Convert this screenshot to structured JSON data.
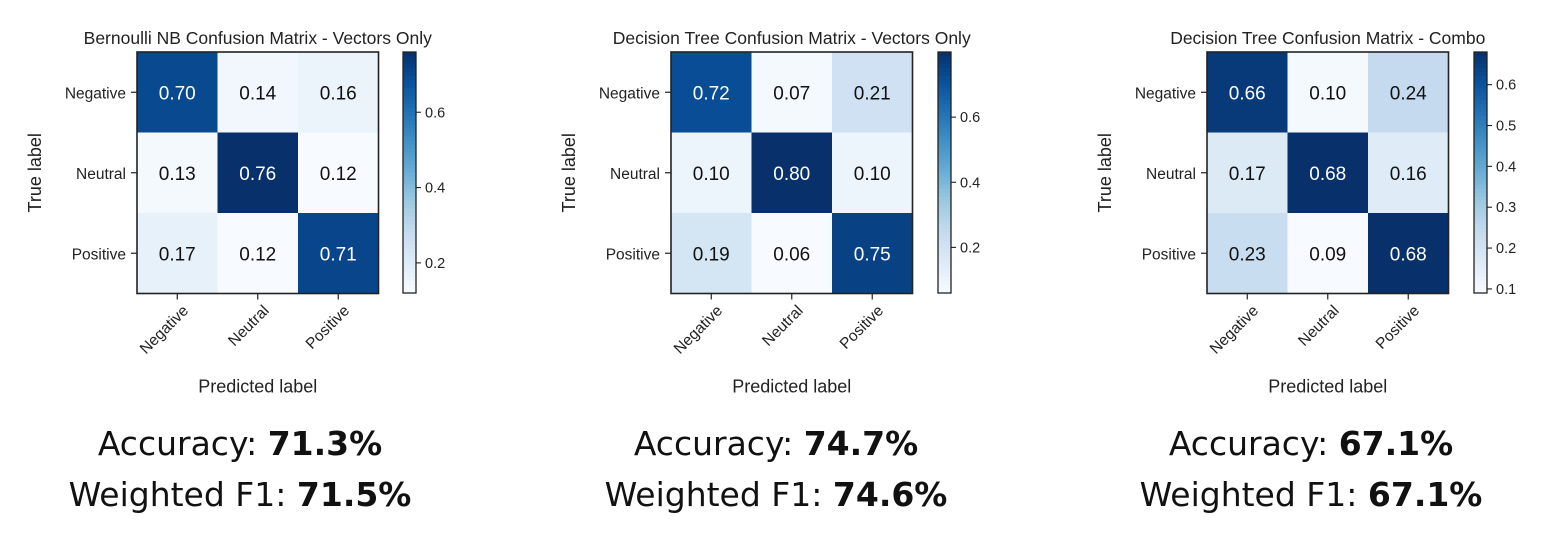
{
  "chart_data": [
    {
      "type": "heatmap",
      "title": "Bernoulli NB Confusion Matrix - Vectors Only",
      "xlabel": "Predicted label",
      "ylabel": "True label",
      "x_categories": [
        "Negative",
        "Neutral",
        "Positive"
      ],
      "y_categories": [
        "Negative",
        "Neutral",
        "Positive"
      ],
      "values": [
        [
          0.7,
          0.14,
          0.16
        ],
        [
          0.13,
          0.76,
          0.12
        ],
        [
          0.17,
          0.12,
          0.71
        ]
      ],
      "cell_labels": [
        [
          "0.70",
          "0.14",
          "0.16"
        ],
        [
          "0.13",
          "0.76",
          "0.12"
        ],
        [
          "0.17",
          "0.12",
          "0.71"
        ]
      ],
      "colorscale": "Blues",
      "color_range": [
        0.12,
        0.76
      ],
      "colorbar_ticks": [
        0.2,
        0.4,
        0.6
      ],
      "colorbar_tick_labels": [
        "0.2",
        "0.4",
        "0.6"
      ]
    },
    {
      "type": "heatmap",
      "title": "Decision Tree Confusion Matrix - Vectors Only",
      "xlabel": "Predicted label",
      "ylabel": "True label",
      "x_categories": [
        "Negative",
        "Neutral",
        "Positive"
      ],
      "y_categories": [
        "Negative",
        "Neutral",
        "Positive"
      ],
      "values": [
        [
          0.72,
          0.07,
          0.21
        ],
        [
          0.1,
          0.8,
          0.1
        ],
        [
          0.19,
          0.06,
          0.75
        ]
      ],
      "cell_labels": [
        [
          "0.72",
          "0.07",
          "0.21"
        ],
        [
          "0.10",
          "0.80",
          "0.10"
        ],
        [
          "0.19",
          "0.06",
          "0.75"
        ]
      ],
      "colorscale": "Blues",
      "color_range": [
        0.06,
        0.8
      ],
      "colorbar_ticks": [
        0.2,
        0.4,
        0.6
      ],
      "colorbar_tick_labels": [
        "0.2",
        "0.4",
        "0.6"
      ]
    },
    {
      "type": "heatmap",
      "title": "Decision Tree Confusion Matrix - Combo",
      "xlabel": "Predicted label",
      "ylabel": "True label",
      "x_categories": [
        "Negative",
        "Neutral",
        "Positive"
      ],
      "y_categories": [
        "Negative",
        "Neutral",
        "Positive"
      ],
      "values": [
        [
          0.66,
          0.1,
          0.24
        ],
        [
          0.17,
          0.68,
          0.16
        ],
        [
          0.23,
          0.09,
          0.68
        ]
      ],
      "cell_labels": [
        [
          "0.66",
          "0.10",
          "0.24"
        ],
        [
          "0.17",
          "0.68",
          "0.16"
        ],
        [
          "0.23",
          "0.09",
          "0.68"
        ]
      ],
      "colorscale": "Blues",
      "color_range": [
        0.09,
        0.68
      ],
      "colorbar_ticks": [
        0.1,
        0.2,
        0.3,
        0.4,
        0.5,
        0.6
      ],
      "colorbar_tick_labels": [
        "0.1",
        "0.2",
        "0.3",
        "0.4",
        "0.5",
        "0.6"
      ]
    }
  ],
  "metrics": [
    {
      "accuracy_label": "Accuracy: ",
      "accuracy_value": "71.3%",
      "f1_label": "Weighted F1: ",
      "f1_value": "71.5%"
    },
    {
      "accuracy_label": "Accuracy: ",
      "accuracy_value": "74.7%",
      "f1_label": "Weighted F1: ",
      "f1_value": "74.6%"
    },
    {
      "accuracy_label": "Accuracy: ",
      "accuracy_value": "67.1%",
      "f1_label": "Weighted F1: ",
      "f1_value": "67.1%"
    }
  ]
}
